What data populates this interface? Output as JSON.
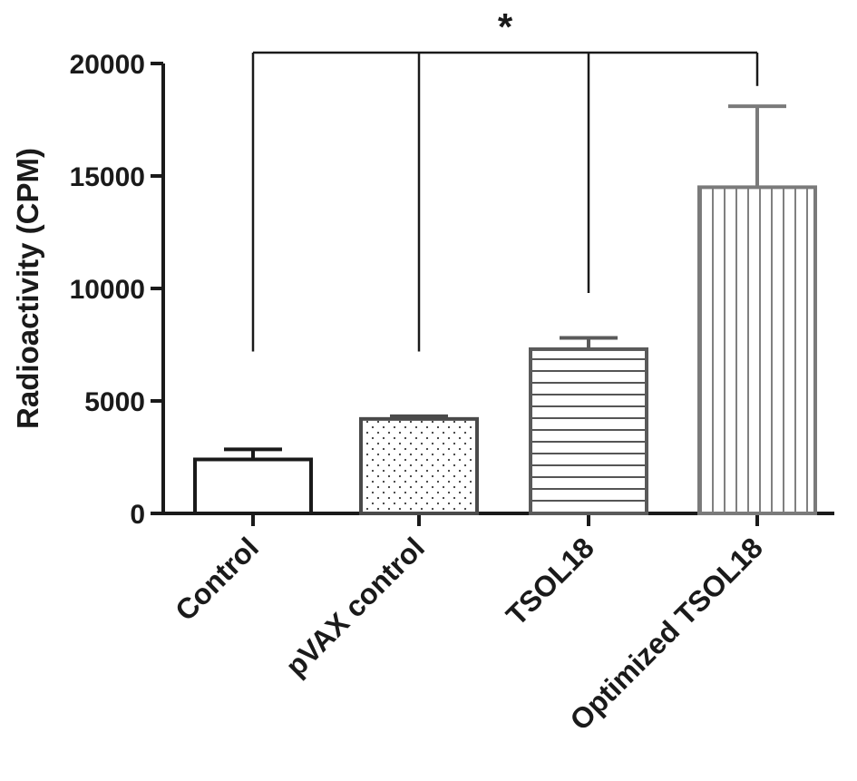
{
  "chart_data": {
    "type": "bar",
    "categories": [
      "Control",
      "pVAX control",
      "TSOL18",
      "Optimized TSOL18"
    ],
    "values": [
      2400,
      4200,
      7300,
      14500
    ],
    "errors": [
      450,
      120,
      500,
      3600
    ],
    "bar_styles": [
      {
        "pattern": "none",
        "stroke": "#1a1a1a"
      },
      {
        "pattern": "dots",
        "stroke": "#4a4a4a"
      },
      {
        "pattern": "horizontal-lines",
        "stroke": "#5a5a5a"
      },
      {
        "pattern": "vertical-lines",
        "stroke": "#7a7a7a"
      }
    ],
    "ylabel": "Radioactivity (CPM)",
    "xlabel": "",
    "ylim": [
      0,
      20000
    ],
    "yticks": [
      "0",
      "5000",
      "10000",
      "15000",
      "20000"
    ],
    "yticks_values": [
      0,
      5000,
      10000,
      15000,
      20000
    ],
    "significance": {
      "label": "*",
      "from_index": 0,
      "to_indices": [
        1,
        2,
        3
      ],
      "drop_values": [
        7200,
        7200,
        9800,
        19000
      ]
    },
    "grid": false,
    "legend": "none"
  }
}
